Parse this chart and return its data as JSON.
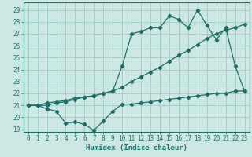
{
  "xlabel": "Humidex (Indice chaleur)",
  "bg_color": "#cce8e4",
  "grid_color": "#99ccc6",
  "line_color": "#1a6e66",
  "xlim": [
    -0.5,
    23.5
  ],
  "ylim": [
    18.8,
    29.6
  ],
  "xticks": [
    0,
    1,
    2,
    3,
    4,
    5,
    6,
    7,
    8,
    9,
    10,
    11,
    12,
    13,
    14,
    15,
    16,
    17,
    18,
    19,
    20,
    21,
    22,
    23
  ],
  "yticks": [
    19,
    20,
    21,
    22,
    23,
    24,
    25,
    26,
    27,
    28,
    29
  ],
  "series1_x": [
    0,
    1,
    2,
    3,
    4,
    5,
    6,
    7,
    8,
    9,
    10,
    11,
    12,
    13,
    14,
    15,
    16,
    17,
    18,
    19,
    20,
    21,
    22,
    23
  ],
  "series1_y": [
    21.0,
    21.0,
    20.7,
    20.5,
    19.5,
    19.6,
    19.4,
    18.9,
    19.7,
    20.5,
    21.1,
    21.1,
    21.2,
    21.3,
    21.4,
    21.5,
    21.6,
    21.7,
    21.8,
    21.9,
    22.0,
    22.0,
    22.2,
    22.2
  ],
  "series2_x": [
    0,
    1,
    2,
    3,
    4,
    5,
    6,
    7,
    8,
    9,
    10,
    11,
    12,
    13,
    14,
    15,
    16,
    17,
    18,
    19,
    20,
    21,
    22,
    23
  ],
  "series2_y": [
    21.0,
    21.0,
    21.2,
    21.3,
    21.4,
    21.6,
    21.7,
    21.8,
    22.0,
    22.2,
    22.5,
    23.0,
    23.4,
    23.8,
    24.2,
    24.7,
    25.2,
    25.6,
    26.1,
    26.6,
    27.0,
    27.3,
    27.5,
    27.8
  ],
  "series3_x": [
    0,
    1,
    2,
    3,
    4,
    5,
    6,
    7,
    8,
    9,
    10,
    11,
    12,
    13,
    14,
    15,
    16,
    17,
    18,
    19,
    20,
    21,
    22,
    23
  ],
  "series3_y": [
    21.0,
    21.0,
    21.0,
    21.2,
    21.3,
    21.5,
    21.7,
    21.8,
    22.0,
    22.2,
    24.3,
    27.0,
    27.2,
    27.5,
    27.5,
    28.5,
    28.2,
    27.5,
    29.0,
    27.7,
    26.5,
    27.5,
    24.3,
    22.2
  ],
  "marker": "D",
  "markersize": 2.2,
  "linewidth": 0.9,
  "tick_fontsize": 5.5,
  "xlabel_fontsize": 6.5
}
